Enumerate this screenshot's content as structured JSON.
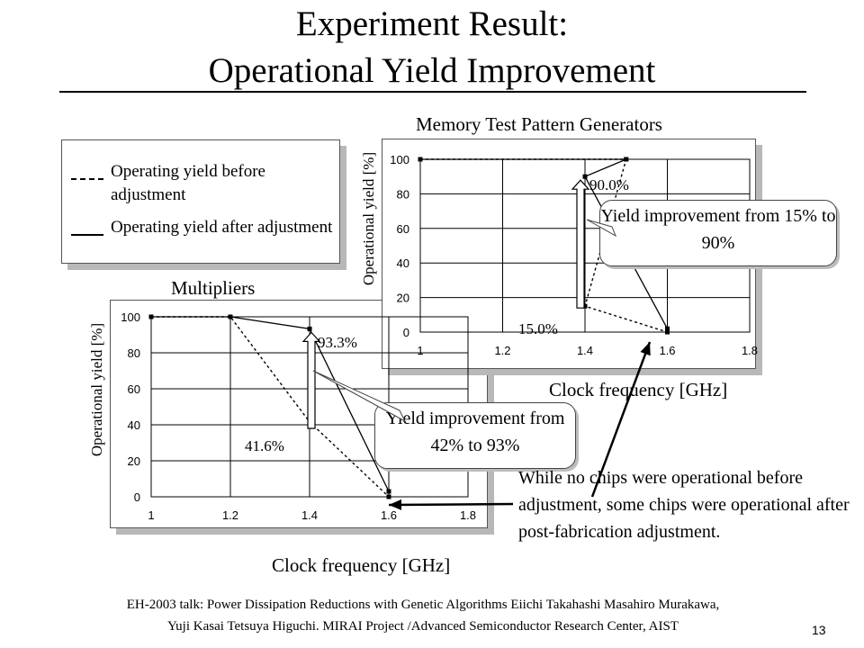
{
  "title": {
    "line1": "Experiment Result:",
    "line2": "Operational Yield Improvement"
  },
  "legend": {
    "dashed_label": "Operating yield before  adjustment",
    "solid_label": "Operating yield after adjustment"
  },
  "chart_data": [
    {
      "type": "line",
      "title": "Memory Test Pattern Generators",
      "xlabel": "Clock frequency [GHz]",
      "ylabel": "Operational yield [%]",
      "xlim": [
        1,
        1.8
      ],
      "ylim": [
        0,
        100
      ],
      "xticks": [
        "1",
        "1.2",
        "1.4",
        "1.6",
        "1.8"
      ],
      "yticks": [
        "0",
        "20",
        "40",
        "60",
        "80",
        "100"
      ],
      "grid": true,
      "series": [
        {
          "style": "dashed",
          "x": [
            1.0,
            1.5,
            1.4,
            1.6
          ],
          "y": [
            100,
            100,
            15,
            0
          ]
        },
        {
          "style": "solid",
          "x": [
            1.0,
            1.5,
            1.4,
            1.6
          ],
          "y": [
            100,
            100,
            90,
            2
          ]
        }
      ],
      "annotations": {
        "before": "15.0%",
        "after": "90.0%",
        "callout": "Yield improvement from 15% to 90%"
      }
    },
    {
      "type": "line",
      "title": "Multipliers",
      "xlabel": "Clock frequency [GHz]",
      "ylabel": "Operational yield [%]",
      "xlim": [
        1,
        1.8
      ],
      "ylim": [
        0,
        100
      ],
      "xticks": [
        "1",
        "1.2",
        "1.4",
        "1.6",
        "1.8"
      ],
      "yticks": [
        "0",
        "20",
        "40",
        "60",
        "80",
        "100"
      ],
      "grid": true,
      "series": [
        {
          "style": "dashed",
          "x": [
            1.0,
            1.2,
            1.4,
            1.6
          ],
          "y": [
            100,
            100,
            41.6,
            0
          ]
        },
        {
          "style": "solid",
          "x": [
            1.0,
            1.2,
            1.4,
            1.6
          ],
          "y": [
            100,
            100,
            93.3,
            3
          ]
        }
      ],
      "annotations": {
        "before": "41.6%",
        "after": "93.3%",
        "callout": "Yield improvement from 42% to 93%"
      }
    }
  ],
  "note": "While no chips were operational before adjustment, some chips were operational after post-fabrication adjustment.",
  "footer": {
    "line1": "EH-2003 talk: Power Dissipation Reductions with Genetic Algorithms Eiichi Takahashi  Masahiro Murakawa,",
    "line2": "Yuji Kasai    Tetsuya Higuchi. MIRAI Project  /Advanced Semiconductor Research Center, AIST"
  },
  "page_number": "13"
}
